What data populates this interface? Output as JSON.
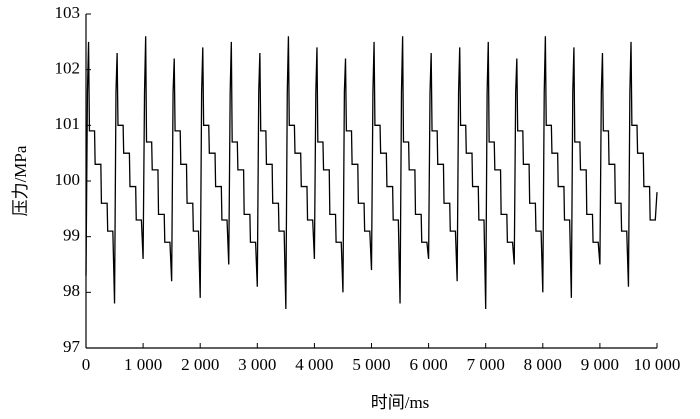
{
  "chart_data": {
    "type": "line",
    "x_label": "时间/ms",
    "y_label": "压力/MPa",
    "color": "#000000",
    "x": [
      0,
      25,
      45,
      60,
      150,
      160,
      260,
      270,
      370,
      380,
      470,
      500,
      525,
      545,
      560,
      650,
      660,
      760,
      770,
      870,
      880,
      970,
      1000,
      1025,
      1045,
      1060,
      1150,
      1160,
      1260,
      1270,
      1370,
      1380,
      1470,
      1500,
      1525,
      1545,
      1560,
      1650,
      1660,
      1760,
      1770,
      1870,
      1880,
      1970,
      2000,
      2025,
      2045,
      2060,
      2150,
      2160,
      2260,
      2270,
      2370,
      2380,
      2470,
      2500,
      2525,
      2545,
      2560,
      2650,
      2660,
      2760,
      2770,
      2870,
      2880,
      2970,
      3000,
      3025,
      3045,
      3060,
      3150,
      3160,
      3260,
      3270,
      3370,
      3380,
      3470,
      3500,
      3525,
      3545,
      3560,
      3650,
      3660,
      3760,
      3770,
      3870,
      3880,
      3970,
      4000,
      4025,
      4045,
      4060,
      4150,
      4160,
      4260,
      4270,
      4370,
      4380,
      4470,
      4500,
      4525,
      4545,
      4560,
      4650,
      4660,
      4760,
      4770,
      4870,
      4880,
      4970,
      5000,
      5025,
      5045,
      5060,
      5150,
      5160,
      5260,
      5270,
      5370,
      5380,
      5470,
      5500,
      5525,
      5545,
      5560,
      5650,
      5660,
      5760,
      5770,
      5870,
      5880,
      5970,
      6000,
      6025,
      6045,
      6060,
      6150,
      6160,
      6260,
      6270,
      6370,
      6380,
      6470,
      6500,
      6525,
      6545,
      6560,
      6650,
      6660,
      6760,
      6770,
      6870,
      6880,
      6970,
      7000,
      7025,
      7045,
      7060,
      7150,
      7160,
      7260,
      7270,
      7370,
      7380,
      7470,
      7500,
      7525,
      7545,
      7560,
      7650,
      7660,
      7760,
      7770,
      7870,
      7880,
      7970,
      8000,
      8025,
      8045,
      8060,
      8150,
      8160,
      8260,
      8270,
      8370,
      8380,
      8470,
      8500,
      8525,
      8545,
      8560,
      8650,
      8660,
      8760,
      8770,
      8870,
      8880,
      8970,
      9000,
      9025,
      9045,
      9060,
      9150,
      9160,
      9260,
      9270,
      9370,
      9380,
      9470,
      9500,
      9525,
      9545,
      9560,
      9650,
      9660,
      9760,
      9770,
      9870,
      9880,
      9970,
      10000
    ],
    "values": [
      98.3,
      101.6,
      102.5,
      100.9,
      100.9,
      100.3,
      100.3,
      99.6,
      99.6,
      99.1,
      99.1,
      97.8,
      101.6,
      102.3,
      101.0,
      101.0,
      100.5,
      100.5,
      99.9,
      99.9,
      99.3,
      99.3,
      98.6,
      101.6,
      102.6,
      100.7,
      100.7,
      100.2,
      100.2,
      99.4,
      99.4,
      98.9,
      98.9,
      98.2,
      101.6,
      102.2,
      100.9,
      100.9,
      100.3,
      100.3,
      99.6,
      99.6,
      99.1,
      99.1,
      97.9,
      101.6,
      102.4,
      101.0,
      101.0,
      100.5,
      100.5,
      99.9,
      99.9,
      99.3,
      99.3,
      98.5,
      101.6,
      102.5,
      100.7,
      100.7,
      100.2,
      100.2,
      99.4,
      99.4,
      98.9,
      98.9,
      98.1,
      101.6,
      102.3,
      100.9,
      100.9,
      100.3,
      100.3,
      99.6,
      99.6,
      99.1,
      99.1,
      97.7,
      101.6,
      102.6,
      101.0,
      101.0,
      100.5,
      100.5,
      99.9,
      99.9,
      99.3,
      99.3,
      98.6,
      101.6,
      102.4,
      100.7,
      100.7,
      100.2,
      100.2,
      99.4,
      99.4,
      98.9,
      98.9,
      98.0,
      101.6,
      102.2,
      100.9,
      100.9,
      100.3,
      100.3,
      99.6,
      99.6,
      99.1,
      99.1,
      98.4,
      101.6,
      102.5,
      101.0,
      101.0,
      100.5,
      100.5,
      99.9,
      99.9,
      99.3,
      99.3,
      97.8,
      101.6,
      102.6,
      100.7,
      100.7,
      100.2,
      100.2,
      99.4,
      99.4,
      98.9,
      98.9,
      98.6,
      101.6,
      102.3,
      100.9,
      100.9,
      100.3,
      100.3,
      99.6,
      99.6,
      99.1,
      99.1,
      98.2,
      101.6,
      102.4,
      101.0,
      101.0,
      100.5,
      100.5,
      99.9,
      99.9,
      99.3,
      99.3,
      97.7,
      101.6,
      102.5,
      100.7,
      100.7,
      100.2,
      100.2,
      99.4,
      99.4,
      98.9,
      98.9,
      98.5,
      101.6,
      102.2,
      100.9,
      100.9,
      100.3,
      100.3,
      99.6,
      99.6,
      99.1,
      99.1,
      98.0,
      101.6,
      102.6,
      101.0,
      101.0,
      100.5,
      100.5,
      99.9,
      99.9,
      99.3,
      99.3,
      97.9,
      101.6,
      102.4,
      100.7,
      100.7,
      100.2,
      100.2,
      99.4,
      99.4,
      98.9,
      98.9,
      98.5,
      101.6,
      102.3,
      100.9,
      100.9,
      100.3,
      100.3,
      99.6,
      99.6,
      99.1,
      99.1,
      98.1,
      101.6,
      102.5,
      101.0,
      101.0,
      100.5,
      100.5,
      99.9,
      99.9,
      99.3,
      99.3,
      99.8
    ],
    "xlim": [
      0,
      10000
    ],
    "xticks": [
      0,
      {
        "value": 1000,
        "label": "1 000"
      },
      {
        "value": 2000,
        "label": "2 000"
      },
      {
        "value": 3000,
        "label": "3 000"
      },
      {
        "value": 4000,
        "label": "4 000"
      },
      {
        "value": 5000,
        "label": "5 000"
      },
      {
        "value": 6000,
        "label": "6 000"
      },
      {
        "value": 7000,
        "label": "7 000"
      },
      {
        "value": 8000,
        "label": "8 000"
      },
      {
        "value": 9000,
        "label": "9 000"
      },
      {
        "value": 10000,
        "label": "10 000"
      }
    ],
    "ylim": [
      97,
      103
    ],
    "yticks": [
      97,
      98,
      99,
      100,
      101,
      102,
      103
    ]
  }
}
